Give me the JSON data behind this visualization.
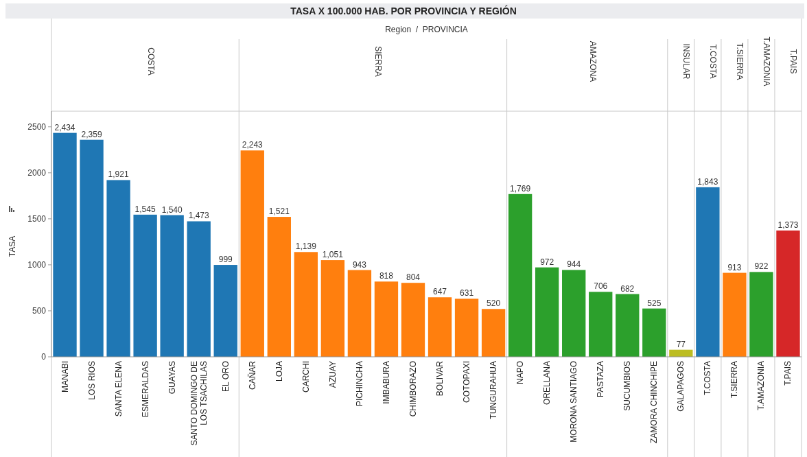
{
  "chart_data": {
    "type": "bar",
    "title": "TASA X 100.000 HAB. POR PROVINCIA Y REGIÓN",
    "ylabel": "TASA",
    "annotations": [
      "Region  /  PROVINCIA",
      "COSTA",
      "SIERRA",
      "AMAZONA",
      "INSULAR",
      "T.COSTA",
      "T.SIERRA",
      "T.AMAZONIA",
      "T.PAIS"
    ],
    "categories": [
      "MANABI",
      "LOS RIOS",
      "SANTA ELENA",
      "ESMERALDAS",
      "GUAYAS",
      "SANTO DOMINGO DE LOS TSACHILAS",
      "EL ORO",
      "CAÑAR",
      "LOJA",
      "CARCHI",
      "AZUAY",
      "PICHINCHA",
      "IMBABURA",
      "CHIMBORAZO",
      "BOLIVAR",
      "COTOPAXI",
      "TUNGURAHUA",
      "NAPO",
      "ORELLANA",
      "MORONA SANTIAGO",
      "PASTAZA",
      "SUCUMBIOS",
      "ZAMORA CHINCHIPE",
      "GALAPAGOS",
      "T.COSTA",
      "T.SIERRA",
      "T.AMAZONIA",
      "T.PAIS"
    ],
    "values": [
      2434,
      2359,
      1921,
      1545,
      1540,
      1473,
      999,
      2243,
      1521,
      1139,
      1051,
      943,
      818,
      804,
      647,
      631,
      520,
      1769,
      972,
      944,
      706,
      682,
      525,
      77,
      1843,
      913,
      922,
      1373
    ],
    "value_labels": [
      "2,434",
      "2,359",
      "1,921",
      "1,545",
      "1,540",
      "1,473",
      "999",
      "2,243",
      "1,521",
      "1,139",
      "1,051",
      "943",
      "818",
      "804",
      "647",
      "631",
      "520",
      "1,769",
      "972",
      "944",
      "706",
      "682",
      "525",
      "77",
      "1,843",
      "913",
      "922",
      "1,373"
    ],
    "colors": [
      "#1f77b4",
      "#1f77b4",
      "#1f77b4",
      "#1f77b4",
      "#1f77b4",
      "#1f77b4",
      "#1f77b4",
      "#ff7f0e",
      "#ff7f0e",
      "#ff7f0e",
      "#ff7f0e",
      "#ff7f0e",
      "#ff7f0e",
      "#ff7f0e",
      "#ff7f0e",
      "#ff7f0e",
      "#ff7f0e",
      "#2ca02c",
      "#2ca02c",
      "#2ca02c",
      "#2ca02c",
      "#2ca02c",
      "#2ca02c",
      "#bcbd22",
      "#1f77b4",
      "#ff7f0e",
      "#2ca02c",
      "#d62728"
    ],
    "ylim": [
      0,
      2670
    ],
    "yticks": [
      0,
      500,
      1000,
      1500,
      2000,
      2500
    ]
  }
}
